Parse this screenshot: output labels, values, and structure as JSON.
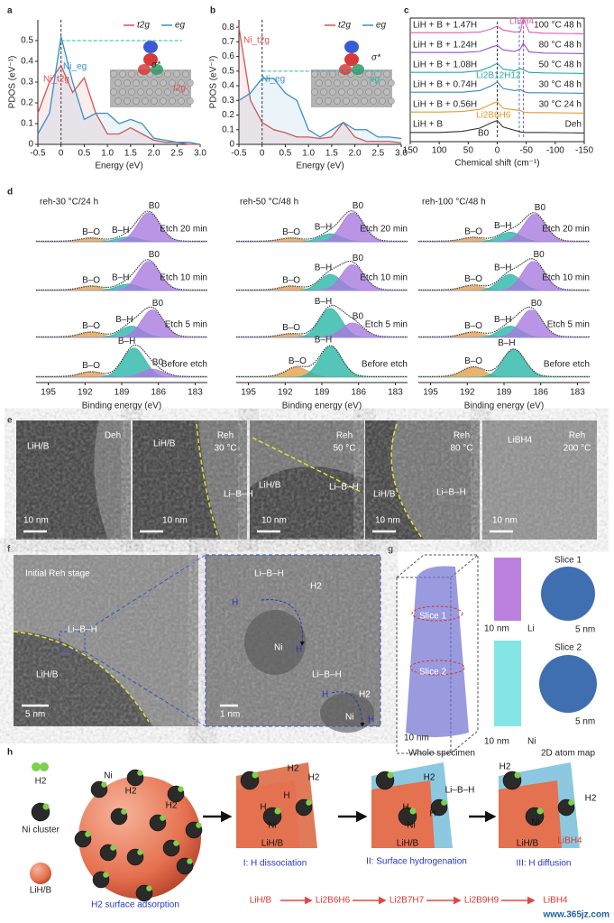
{
  "figure": {
    "panel_labels": [
      "a",
      "b",
      "c",
      "d",
      "e",
      "f",
      "g",
      "h"
    ]
  },
  "chart_data": [
    {
      "type": "line",
      "x_label": "Energy (eV)",
      "y_label": "PDOS (eV⁻¹)",
      "x": [
        -0.5,
        -0.25,
        0,
        0.25,
        0.5,
        0.75,
        1,
        1.25,
        1.5,
        1.75,
        2,
        2.25,
        2.5,
        2.75,
        3
      ],
      "series": [
        {
          "name": "t2g",
          "color": "#d9534f",
          "values": [
            0.15,
            0.3,
            0.38,
            0.25,
            0.32,
            0.15,
            0.05,
            0.05,
            0.08,
            0.05,
            0.02,
            0.01,
            0.01,
            0,
            0
          ]
        },
        {
          "name": "eg",
          "color": "#3a8fc7",
          "values": [
            0.05,
            0.15,
            0.52,
            0.3,
            0.12,
            0.15,
            0.15,
            0.1,
            0.12,
            0.1,
            0.03,
            0.02,
            0.01,
            0.01,
            0
          ]
        }
      ],
      "xlim": [
        -0.5,
        3
      ],
      "xticks": [
        -0.5,
        0,
        0.5,
        {
          "value": 1,
          "label": "1.0"
        },
        1.5,
        {
          "value": 2,
          "label": "2.0"
        },
        2.5,
        {
          "value": 3,
          "label": "3.0"
        }
      ],
      "ylim": [
        0,
        0.6
      ],
      "yticks": [
        0,
        0.1,
        0.2,
        0.3,
        0.4,
        0.5
      ],
      "vline": 0,
      "hline": 0.5,
      "annotations": [
        "Ni_t2g",
        "Ni_eg",
        "σ*",
        "t2g"
      ]
    },
    {
      "type": "line",
      "x_label": "Energy (eV)",
      "y_label": "PDOS (eV⁻¹)",
      "x": [
        -0.5,
        -0.25,
        0,
        0.25,
        0.5,
        0.75,
        1,
        1.25,
        1.5,
        1.75,
        2,
        2.25,
        2.5,
        2.75,
        3
      ],
      "series": [
        {
          "name": "t2g",
          "color": "#d9534f",
          "values": [
            0.8,
            0.3,
            0.15,
            0.1,
            0.08,
            0.05,
            0.05,
            0.04,
            0.05,
            0.15,
            0.05,
            0.02,
            0.02,
            0.02,
            0.01
          ]
        },
        {
          "name": "eg",
          "color": "#3a8fc7",
          "values": [
            0.3,
            0.35,
            0.45,
            0.45,
            0.35,
            0.3,
            0.1,
            0.05,
            0.1,
            0.15,
            0.1,
            0.1,
            0.05,
            0.05,
            0.04
          ]
        }
      ],
      "xlim": [
        -0.5,
        3
      ],
      "xticks": [
        -0.5,
        0,
        0.5,
        {
          "value": 1,
          "label": "1.0"
        },
        1.5,
        {
          "value": 2,
          "label": "2.0"
        },
        2.5,
        {
          "value": 3,
          "label": "3.0"
        }
      ],
      "ylim": [
        0,
        0.85
      ],
      "yticks": [
        0,
        0.1,
        0.2,
        0.3,
        0.4,
        0.5,
        0.6,
        0.7,
        0.8
      ],
      "vline": 0,
      "hline": 0.5,
      "annotations": [
        "Ni_t2g",
        "Ni_eg",
        "σ*",
        "eg"
      ]
    },
    {
      "type": "spectra",
      "x_label": "Chemical shift (cm⁻¹)",
      "x": [
        150,
        100,
        60,
        30,
        10,
        0,
        -10,
        -30,
        -40,
        -45,
        -55,
        -80,
        -150
      ],
      "xlim": [
        150,
        -150
      ],
      "xticks": [
        150,
        100,
        50,
        0,
        -50,
        -100,
        -150
      ],
      "vlines": [
        0,
        -38,
        -45
      ],
      "series": [
        {
          "name": "LiH + B + 1.47H",
          "condition": "100 °C 48 h",
          "color": "#d85fb0",
          "values": [
            0.3,
            0.3,
            0.3,
            0.4,
            1.0,
            1.5,
            0.8,
            0.4,
            0.5,
            3.0,
            0.4,
            0.2,
            0.1
          ]
        },
        {
          "name": "LiH + B + 1.24H",
          "condition": "80 °C 48 h",
          "color": "#9a4fc9",
          "values": [
            0.3,
            0.3,
            0.3,
            0.5,
            1.3,
            1.6,
            0.8,
            0.5,
            1.0,
            2.0,
            0.4,
            0.2,
            0.1
          ]
        },
        {
          "name": "LiH + B + 1.08H",
          "condition": "50 °C 48 h",
          "color": "#2aa7a7",
          "values": [
            0.3,
            0.3,
            0.3,
            0.6,
            1.4,
            2.0,
            0.9,
            0.6,
            1.0,
            0.8,
            0.3,
            0.2,
            0.1
          ]
        },
        {
          "name": "LiH + B + 0.74H",
          "condition": "30 °C 48 h",
          "color": "#3b86c9",
          "values": [
            0.3,
            0.3,
            0.3,
            0.6,
            1.5,
            2.2,
            1.0,
            0.6,
            0.8,
            0.4,
            0.2,
            0.2,
            0.1
          ]
        },
        {
          "name": "LiH + B + 0.56H",
          "condition": "30 °C 24 h",
          "color": "#e39a2e",
          "values": [
            0.3,
            0.3,
            0.4,
            0.8,
            1.8,
            2.2,
            1.0,
            0.7,
            0.6,
            0.3,
            0.2,
            0.2,
            0.1
          ]
        },
        {
          "name": "LiH + B",
          "condition": "Deh",
          "color": "#333333",
          "values": [
            0.2,
            0.2,
            0.4,
            1.0,
            2.0,
            2.4,
            1.2,
            0.6,
            0.3,
            0.2,
            0.2,
            0.2,
            0.1
          ]
        }
      ],
      "annotations": [
        "LiBH4",
        "Li2B12H12",
        "Li2B6H6",
        "B0"
      ]
    },
    {
      "type": "xps",
      "title": "reh-30 °C/24 h",
      "x_label": "Binding energy (eV)",
      "xlim": [
        196,
        182
      ],
      "xticks": [
        195,
        192,
        189,
        186,
        183
      ],
      "sigma": 0.9,
      "traces": [
        {
          "name": "Etch 20 min",
          "components": [
            {
              "label": "B–O",
              "center": 191.5,
              "height": 0.1,
              "color": "#e3a04a"
            },
            {
              "label": "B–H",
              "center": 188.5,
              "height": 0.15,
              "color": "#2bb5a8"
            },
            {
              "label": "B0",
              "center": 186.8,
              "height": 0.9,
              "color": "#a97be0"
            }
          ]
        },
        {
          "name": "Etch 10 min",
          "components": [
            {
              "label": "B–O",
              "center": 191.5,
              "height": 0.12,
              "color": "#e3a04a"
            },
            {
              "label": "B–H",
              "center": 188.5,
              "height": 0.2,
              "color": "#2bb5a8"
            },
            {
              "label": "B0",
              "center": 186.8,
              "height": 0.9,
              "color": "#a97be0"
            }
          ]
        },
        {
          "name": "Etch 5 min",
          "components": [
            {
              "label": "B–O",
              "center": 191.5,
              "height": 0.15,
              "color": "#e3a04a"
            },
            {
              "label": "B–H",
              "center": 188.2,
              "height": 0.35,
              "color": "#2bb5a8"
            },
            {
              "label": "B0",
              "center": 186.5,
              "height": 0.85,
              "color": "#a97be0"
            }
          ]
        },
        {
          "name": "Before etch",
          "components": [
            {
              "label": "B–O",
              "center": 191.5,
              "height": 0.15,
              "color": "#e3a04a"
            },
            {
              "label": "B–H",
              "center": 188,
              "height": 0.9,
              "color": "#2bb5a8"
            },
            {
              "label": "B0",
              "center": 186.5,
              "height": 0.25,
              "color": "#a97be0"
            }
          ]
        }
      ]
    },
    {
      "type": "xps",
      "title": "reh-50 °C/48 h",
      "x_label": "Binding energy (eV)",
      "xlim": [
        196,
        182
      ],
      "xticks": [
        195,
        192,
        189,
        186,
        183
      ],
      "sigma": 0.9,
      "traces": [
        {
          "name": "Etch 20 min",
          "components": [
            {
              "label": "B–O",
              "center": 191.5,
              "height": 0.1,
              "color": "#e3a04a"
            },
            {
              "label": "B–H",
              "center": 188.3,
              "height": 0.25,
              "color": "#2bb5a8"
            },
            {
              "label": "B0",
              "center": 186.5,
              "height": 0.9,
              "color": "#a97be0"
            }
          ]
        },
        {
          "name": "Etch 10 min",
          "components": [
            {
              "label": "B–O",
              "center": 191.5,
              "height": 0.12,
              "color": "#e3a04a"
            },
            {
              "label": "B–H",
              "center": 188.3,
              "height": 0.5,
              "color": "#2bb5a8"
            },
            {
              "label": "B0",
              "center": 186.5,
              "height": 0.8,
              "color": "#a97be0"
            }
          ]
        },
        {
          "name": "Etch 5 min",
          "components": [
            {
              "label": "B–O",
              "center": 191.5,
              "height": 0.1,
              "color": "#e3a04a"
            },
            {
              "label": "B–H",
              "center": 188.3,
              "height": 0.9,
              "color": "#2bb5a8"
            },
            {
              "label": "B0",
              "center": 186.5,
              "height": 0.45,
              "color": "#a97be0"
            }
          ]
        },
        {
          "name": "Before etch",
          "components": [
            {
              "label": "B–O",
              "center": 191,
              "height": 0.3,
              "color": "#e3a04a"
            },
            {
              "label": "B–H",
              "center": 188.3,
              "height": 0.95,
              "color": "#2bb5a8"
            }
          ]
        }
      ]
    },
    {
      "type": "xps",
      "title": "reh-100 °C/48 h",
      "x_label": "Binding energy (eV)",
      "xlim": [
        196,
        182
      ],
      "xticks": [
        195,
        192,
        189,
        186,
        183
      ],
      "sigma": 0.9,
      "traces": [
        {
          "name": "Etch 20 min",
          "components": [
            {
              "label": "B–O",
              "center": 191.5,
              "height": 0.12,
              "color": "#e3a04a"
            },
            {
              "label": "B–H",
              "center": 188.5,
              "height": 0.3,
              "color": "#2bb5a8"
            },
            {
              "label": "B0",
              "center": 186.5,
              "height": 0.85,
              "color": "#a97be0"
            }
          ]
        },
        {
          "name": "Etch 10 min",
          "components": [
            {
              "label": "B–O",
              "center": 191.5,
              "height": 0.15,
              "color": "#e3a04a"
            },
            {
              "label": "B–H",
              "center": 188.5,
              "height": 0.5,
              "color": "#2bb5a8"
            },
            {
              "label": "B0",
              "center": 186.6,
              "height": 0.9,
              "color": "#a97be0"
            }
          ]
        },
        {
          "name": "Etch 5 min",
          "components": [
            {
              "label": "B–O",
              "center": 191.5,
              "height": 0.15,
              "color": "#e3a04a"
            },
            {
              "label": "B–H",
              "center": 188.5,
              "height": 0.35,
              "color": "#2bb5a8"
            },
            {
              "label": "B0",
              "center": 186.8,
              "height": 0.85,
              "color": "#a97be0"
            }
          ]
        },
        {
          "name": "Before etch",
          "components": [
            {
              "label": "B–O",
              "center": 191.5,
              "height": 0.3,
              "color": "#e3a04a"
            },
            {
              "label": "B–H",
              "center": 188.2,
              "height": 0.85,
              "color": "#2bb5a8"
            }
          ]
        }
      ]
    }
  ],
  "panel_e": [
    [
      "LiH/B",
      "Deh",
      "10 nm"
    ],
    [
      "LiH/B",
      "Reh",
      "30 °C",
      "Li–B–H",
      "10 nm"
    ],
    [
      "LiH/B",
      "Reh",
      "50 °C",
      "Li–B–H",
      "10 nm"
    ],
    [
      "LiH/B",
      "Reh",
      "80 °C",
      "Li–B–H",
      "10 nm"
    ],
    [
      "LiBH4",
      "Reh",
      "200 °C",
      "10 nm"
    ]
  ],
  "panel_f": [
    [
      "Initial Reh stage",
      "Li–B–H",
      "LiH/B",
      "5 nm"
    ],
    [
      "Li–B–H",
      "H",
      "H2",
      "Ni",
      "H",
      "Li–B–H",
      "H",
      "H2",
      "Ni",
      "H",
      "1 nm"
    ]
  ],
  "panel_g": [
    "Slice 1",
    "Slice 2",
    "10 nm",
    "Whole specimen",
    "10 nm",
    "Li",
    "10 nm",
    "Ni",
    "Slice 1",
    "5 nm",
    "Slice 2",
    "5 nm",
    "2D atom map"
  ],
  "panel_h": {
    "legend": [
      "H2",
      "Ni cluster",
      "LiH/B"
    ],
    "stages": [
      "H2 surface adsorption",
      "I: H dissociation",
      "II: Surface hydrogenation",
      "III: H diffusion"
    ],
    "labels": [
      "Ni",
      "H2",
      "H2",
      "H2",
      "H2",
      "H",
      "H",
      "Ni",
      "LiH/B",
      "H2",
      "Li–B–H",
      "H",
      "H",
      "Ni",
      "LiH/B",
      "H2",
      "H2",
      "Ni",
      "LiH/B",
      "LiBH4"
    ],
    "chain": [
      "LiH/B",
      "Li2B6H6",
      "Li2B7H7",
      "Li2B9H9",
      "LiBH4"
    ]
  },
  "watermark": "www.365jz.com"
}
